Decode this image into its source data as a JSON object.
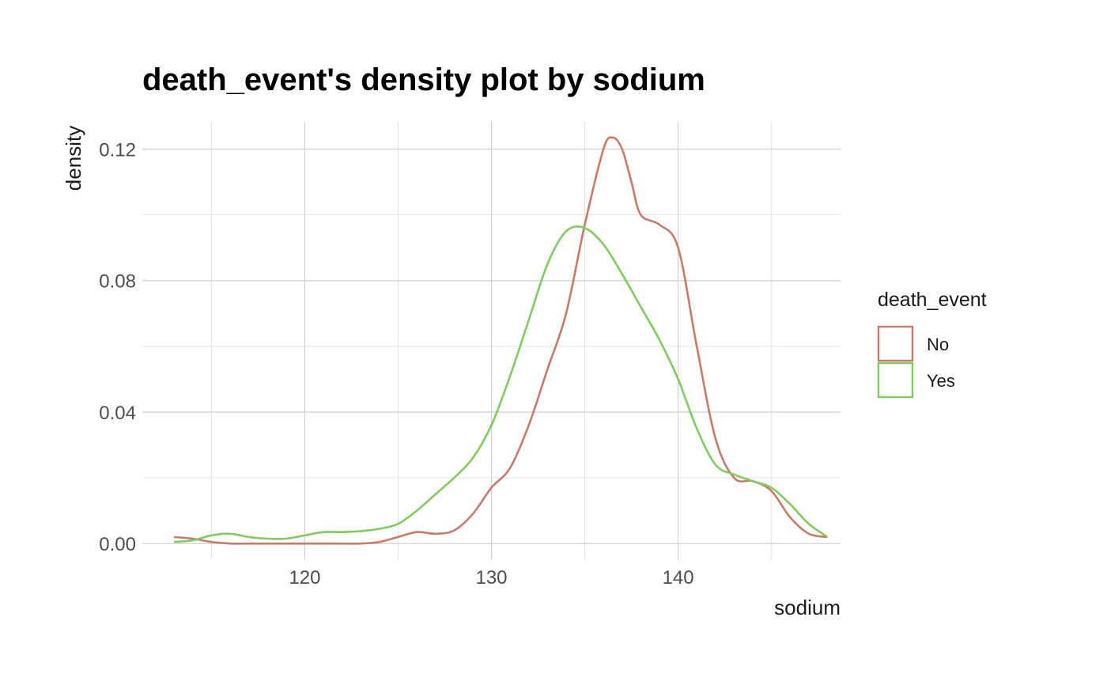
{
  "chart_data": {
    "type": "line",
    "title": "death_event's density plot by sodium",
    "xlabel": "sodium",
    "ylabel": "density",
    "xlim": [
      111.3,
      148.7
    ],
    "ylim": [
      -0.005,
      0.1283
    ],
    "x_ticks": [
      120,
      130,
      140
    ],
    "x_tick_labels": [
      "120",
      "130",
      "140"
    ],
    "x_minor_ticks": [
      115,
      125,
      135,
      145
    ],
    "y_ticks": [
      0.0,
      0.04,
      0.08,
      0.12
    ],
    "y_tick_labels": [
      "0.00",
      "0.04",
      "0.08",
      "0.12"
    ],
    "y_minor_ticks": [
      0.02,
      0.06,
      0.1
    ],
    "grid": true,
    "legend": {
      "title": "death_event",
      "position": "right"
    },
    "series": [
      {
        "name": "No",
        "color": "#c97a68",
        "x": [
          113,
          114,
          115,
          116,
          117,
          118,
          119,
          120,
          121,
          122,
          123,
          124,
          125,
          126,
          127,
          128,
          129,
          130,
          131,
          132,
          133,
          134,
          135,
          136,
          136.5,
          137,
          137.5,
          138,
          139,
          140,
          141,
          142,
          143,
          144,
          145,
          146,
          147,
          148
        ],
        "y": [
          0.002,
          0.0015,
          0.0005,
          0.0,
          0.0,
          0.0,
          0.0,
          0.0,
          0.0,
          0.0,
          0.0,
          0.0005,
          0.002,
          0.0035,
          0.003,
          0.004,
          0.009,
          0.017,
          0.023,
          0.036,
          0.053,
          0.07,
          0.097,
          0.12,
          0.1235,
          0.12,
          0.11,
          0.1,
          0.097,
          0.09,
          0.06,
          0.032,
          0.02,
          0.019,
          0.016,
          0.008,
          0.003,
          0.002
        ]
      },
      {
        "name": "Yes",
        "color": "#7fcc5f",
        "x": [
          113,
          114,
          115,
          116,
          117,
          118,
          119,
          120,
          121,
          122,
          123,
          124,
          125,
          126,
          127,
          128,
          129,
          130,
          131,
          132,
          133,
          134,
          135,
          136,
          137,
          138,
          139,
          140,
          141,
          142,
          143,
          144,
          145,
          146,
          147,
          148
        ],
        "y": [
          0.0005,
          0.001,
          0.0025,
          0.003,
          0.002,
          0.0015,
          0.0015,
          0.0025,
          0.0035,
          0.0035,
          0.0038,
          0.0045,
          0.006,
          0.01,
          0.015,
          0.02,
          0.026,
          0.036,
          0.051,
          0.068,
          0.085,
          0.095,
          0.096,
          0.091,
          0.082,
          0.072,
          0.062,
          0.05,
          0.035,
          0.024,
          0.021,
          0.019,
          0.017,
          0.012,
          0.006,
          0.002
        ]
      }
    ]
  }
}
